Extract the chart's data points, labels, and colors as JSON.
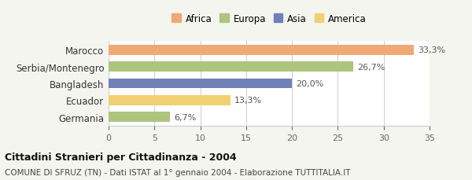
{
  "categories": [
    "Germania",
    "Ecuador",
    "Bangladesh",
    "Serbia/Montenegro",
    "Marocco"
  ],
  "values": [
    6.7,
    13.3,
    20.0,
    26.7,
    33.3
  ],
  "labels": [
    "6,7%",
    "13,3%",
    "20,0%",
    "26,7%",
    "33,3%"
  ],
  "colors": [
    "#adc47d",
    "#f0d070",
    "#7080b8",
    "#adc47d",
    "#f0a875"
  ],
  "legend_entries": [
    {
      "label": "Africa",
      "color": "#f0a875"
    },
    {
      "label": "Europa",
      "color": "#adc47d"
    },
    {
      "label": "Asia",
      "color": "#7080b8"
    },
    {
      "label": "America",
      "color": "#f0d070"
    }
  ],
  "xlim": [
    0,
    35
  ],
  "xticks": [
    0,
    5,
    10,
    15,
    20,
    25,
    30,
    35
  ],
  "title": "Cittadini Stranieri per Cittadinanza - 2004",
  "subtitle": "COMUNE DI SFRUZ (TN) - Dati ISTAT al 1° gennaio 2004 - Elaborazione TUTTITALIA.IT",
  "background_color": "#f5f5f0",
  "plot_bg_color": "#ffffff"
}
